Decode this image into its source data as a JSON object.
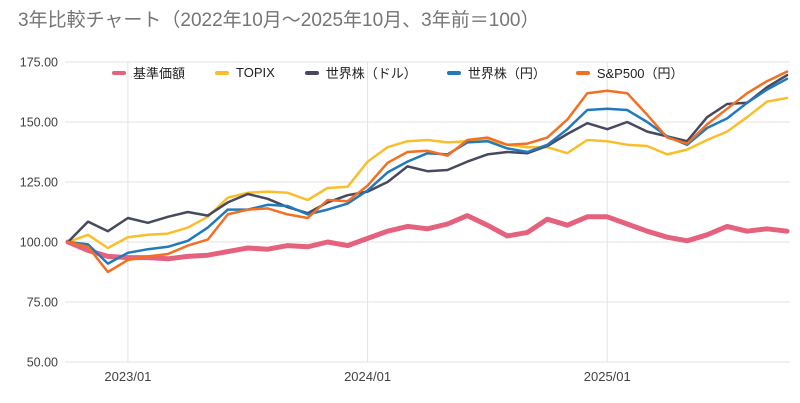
{
  "title": "3年比較チャート（2022年10月〜2025年10月、3年前＝100）",
  "chart_data": {
    "type": "line",
    "title": "3年比較チャート（2022年10月〜2025年10月、3年前＝100）",
    "legend_position": "top",
    "grid": true,
    "y_axis": {
      "min": 50,
      "max": 175,
      "ticks": [
        {
          "value": 175,
          "label": "175.00"
        },
        {
          "value": 150,
          "label": "150.00"
        },
        {
          "value": 125,
          "label": "125.00"
        },
        {
          "value": 100,
          "label": "100.00"
        },
        {
          "value": 75,
          "label": "75.00"
        },
        {
          "value": 50,
          "label": "50.00"
        }
      ]
    },
    "x_axis": {
      "range_start": "2022/10",
      "range_end": "2025/10",
      "ticks": [
        {
          "month_index": 3,
          "label": "2023/01"
        },
        {
          "month_index": 15,
          "label": "2024/01"
        },
        {
          "month_index": 27,
          "label": "2025/01"
        }
      ]
    },
    "months": [
      "2022/10",
      "2022/11",
      "2022/12",
      "2023/01",
      "2023/02",
      "2023/03",
      "2023/04",
      "2023/05",
      "2023/06",
      "2023/07",
      "2023/08",
      "2023/09",
      "2023/10",
      "2023/11",
      "2023/12",
      "2024/01",
      "2024/02",
      "2024/03",
      "2024/04",
      "2024/05",
      "2024/06",
      "2024/07",
      "2024/08",
      "2024/09",
      "2024/10",
      "2024/11",
      "2024/12",
      "2025/01",
      "2025/02",
      "2025/03",
      "2025/04",
      "2025/05",
      "2025/06",
      "2025/07",
      "2025/08",
      "2025/09",
      "2025/10"
    ],
    "series": [
      {
        "name": "基準価額",
        "color": "#E5627E",
        "line_width": 5,
        "values": [
          100,
          96.5,
          94,
          93.5,
          93.5,
          93,
          94,
          94.5,
          96,
          97.5,
          97,
          98.5,
          98,
          100,
          98.5,
          101.5,
          104.5,
          106.5,
          105.5,
          107.5,
          111,
          107,
          102.5,
          104,
          109.5,
          107,
          110.5,
          110.5,
          107.5,
          104.5,
          102,
          100.5,
          103,
          106.5,
          104.5,
          105.5,
          104.5
        ]
      },
      {
        "name": "TOPIX",
        "color": "#F9BF2B",
        "line_width": 2.5,
        "values": [
          100,
          103,
          97.5,
          102,
          103,
          103.5,
          106,
          110.5,
          118.5,
          120.5,
          121,
          120.5,
          117.5,
          122.5,
          123,
          133.5,
          139.5,
          142,
          142.5,
          141.5,
          142,
          142.5,
          140.5,
          139.5,
          139.5,
          137,
          142.5,
          142,
          140.5,
          140,
          136.5,
          138.5,
          142.5,
          146,
          152,
          158.5,
          160
        ]
      },
      {
        "name": "世界株（ドル）",
        "color": "#474A5F",
        "line_width": 2.5,
        "values": [
          100,
          108.5,
          104.5,
          110,
          108,
          110.5,
          112.5,
          111,
          116.5,
          120,
          118,
          114.5,
          112,
          116.5,
          119.5,
          121,
          125,
          131.5,
          129.5,
          130,
          133.5,
          136.5,
          137.5,
          137,
          140,
          145,
          149.5,
          147,
          150,
          146,
          144,
          142,
          152,
          157.5,
          158,
          164.5,
          169.5
        ]
      },
      {
        "name": "世界株（円）",
        "color": "#2279BC",
        "line_width": 2.5,
        "values": [
          100,
          99,
          91,
          95.5,
          97,
          98,
          100.5,
          106,
          113.5,
          113.5,
          115.5,
          115,
          111.5,
          113.5,
          116,
          121.5,
          129,
          133.5,
          137,
          136.5,
          141.5,
          142,
          139,
          137.5,
          140.5,
          147,
          155,
          155.5,
          155,
          150,
          144,
          140.5,
          147.5,
          151.5,
          158,
          163.5,
          168
        ]
      },
      {
        "name": "S&P500（円）",
        "color": "#F36F21",
        "line_width": 2.5,
        "values": [
          100,
          98,
          87.5,
          92.5,
          94,
          95,
          98.5,
          101,
          111.5,
          113.5,
          114,
          111.5,
          110,
          117.5,
          117,
          123.5,
          133,
          137.5,
          138,
          136,
          142.5,
          143.5,
          140.5,
          141,
          143.5,
          151,
          162,
          163,
          162,
          153,
          143.5,
          141,
          149,
          155.5,
          162,
          167,
          171
        ]
      }
    ]
  }
}
